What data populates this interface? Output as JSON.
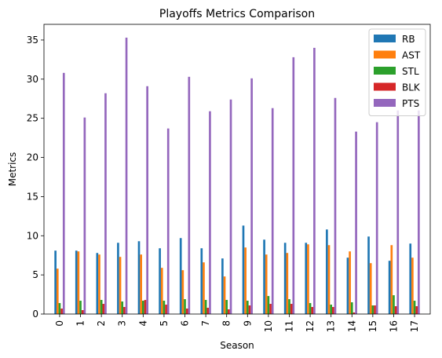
{
  "chart_data": {
    "type": "bar",
    "title": "Playoffs Metrics Comparison",
    "xlabel": "Season",
    "ylabel": "Metrics",
    "ylim": [
      0,
      37
    ],
    "yticks": [
      0,
      5,
      10,
      15,
      20,
      25,
      30,
      35
    ],
    "categories": [
      "0",
      "1",
      "2",
      "3",
      "4",
      "5",
      "6",
      "7",
      "8",
      "9",
      "10",
      "11",
      "12",
      "13",
      "14",
      "15",
      "16",
      "17"
    ],
    "legend_position": "top-right",
    "grid": false,
    "series": [
      {
        "name": "RB",
        "color": "#1f77b4",
        "values": [
          8.1,
          8.1,
          7.8,
          9.1,
          9.3,
          8.4,
          9.7,
          8.4,
          7.1,
          11.3,
          9.5,
          9.1,
          9.1,
          10.8,
          7.2,
          9.9,
          6.8,
          9.0
        ]
      },
      {
        "name": "AST",
        "color": "#ff7f0e",
        "values": [
          5.8,
          8.0,
          7.6,
          7.3,
          7.6,
          5.9,
          5.6,
          6.6,
          4.8,
          8.5,
          7.6,
          7.8,
          8.9,
          8.8,
          8.0,
          6.5,
          8.8,
          7.2
        ]
      },
      {
        "name": "STL",
        "color": "#2ca02c",
        "values": [
          1.4,
          1.7,
          1.8,
          1.6,
          1.7,
          1.7,
          1.9,
          1.8,
          1.8,
          1.7,
          2.3,
          1.9,
          1.4,
          1.2,
          1.5,
          1.1,
          2.4,
          1.7
        ]
      },
      {
        "name": "BLK",
        "color": "#d62728",
        "values": [
          0.7,
          0.5,
          1.3,
          0.9,
          1.8,
          1.2,
          0.7,
          0.8,
          0.6,
          1.1,
          1.3,
          1.3,
          0.9,
          0.9,
          0.2,
          1.1,
          1.0,
          1.0
        ]
      },
      {
        "name": "PTS",
        "color": "#9467bd",
        "values": [
          30.8,
          25.1,
          28.2,
          35.3,
          29.1,
          23.7,
          30.3,
          25.9,
          27.4,
          30.1,
          26.3,
          32.8,
          34.0,
          27.6,
          23.3,
          24.5,
          26.0,
          26.0
        ]
      }
    ]
  }
}
